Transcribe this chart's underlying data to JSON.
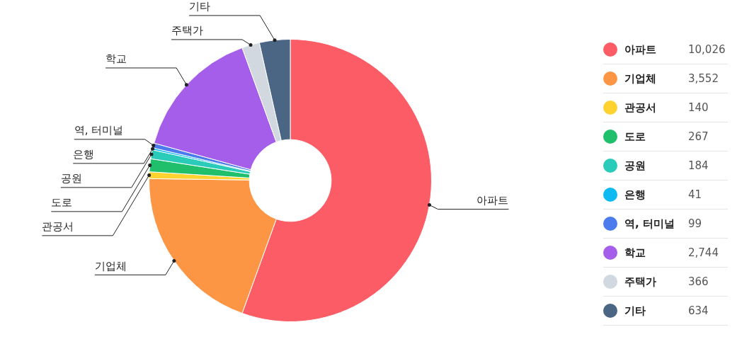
{
  "chart_data": {
    "type": "donut",
    "categories": [
      "아파트",
      "기업체",
      "관공서",
      "도로",
      "공원",
      "은행",
      "역, 터미널",
      "학교",
      "주택가",
      "기타"
    ],
    "values": [
      10026,
      3552,
      140,
      267,
      184,
      41,
      99,
      2744,
      366,
      634
    ],
    "colors": [
      "#fc5c65",
      "#fd9644",
      "#fed330",
      "#20bf6b",
      "#2bcbba",
      "#0fb9f1",
      "#4b7bec",
      "#a55eea",
      "#d1d8e0",
      "#4b6584"
    ],
    "value_labels": [
      "10,026",
      "3,552",
      "140",
      "267",
      "184",
      "41",
      "99",
      "2,744",
      "366",
      "634"
    ],
    "legend": "right"
  }
}
